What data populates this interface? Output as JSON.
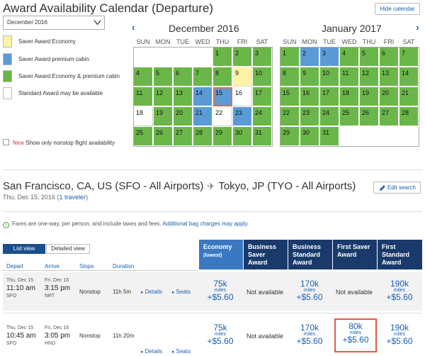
{
  "page": {
    "title": "Award Availability Calendar (Departure)",
    "hide_calendar": "Hide calendar",
    "month_select": "December 2016"
  },
  "legend": [
    {
      "label": "Saver Award Economy",
      "color": "#fbf3a6"
    },
    {
      "label": "Saver Award premium cabin",
      "color": "#5b9bd5"
    },
    {
      "label": "Saver Award Economy & premium cabin",
      "color": "#6bb649"
    },
    {
      "label": "Standard Award may be available",
      "color": "#ffffff"
    }
  ],
  "nonstop": {
    "new_label": "New",
    "label": "Show only nonstop flight availability"
  },
  "weekdays": [
    "SUN",
    "MON",
    "TUE",
    "WED",
    "THU",
    "FRI",
    "SAT"
  ],
  "calendars": [
    {
      "title": "December 2016",
      "weeks": [
        [
          null,
          null,
          null,
          null,
          {
            "d": "1",
            "s": "green"
          },
          {
            "d": "2",
            "s": "green"
          },
          {
            "d": "3",
            "s": "green"
          }
        ],
        [
          {
            "d": "4",
            "s": "green"
          },
          {
            "d": "5",
            "s": "green"
          },
          {
            "d": "6",
            "s": "green"
          },
          {
            "d": "7",
            "s": "green"
          },
          {
            "d": "8",
            "s": "green"
          },
          {
            "d": "9",
            "s": "yellow"
          },
          {
            "d": "10",
            "s": "green"
          }
        ],
        [
          {
            "d": "11",
            "s": "green"
          },
          {
            "d": "12",
            "s": "green"
          },
          {
            "d": "13",
            "s": "green"
          },
          {
            "d": "14",
            "s": "blue"
          },
          {
            "d": "15",
            "s": "blue",
            "selected": true
          },
          {
            "d": "16",
            "s": "white"
          },
          {
            "d": "17",
            "s": "green"
          }
        ],
        [
          {
            "d": "18",
            "s": "white"
          },
          {
            "d": "19",
            "s": "green"
          },
          {
            "d": "20",
            "s": "green"
          },
          {
            "d": "21",
            "s": "blue"
          },
          {
            "d": "22",
            "s": "white"
          },
          {
            "d": "23",
            "s": "blue"
          },
          {
            "d": "24",
            "s": "green"
          }
        ],
        [
          {
            "d": "25",
            "s": "green"
          },
          {
            "d": "26",
            "s": "green"
          },
          {
            "d": "27",
            "s": "green"
          },
          {
            "d": "28",
            "s": "green"
          },
          {
            "d": "29",
            "s": "green"
          },
          {
            "d": "30",
            "s": "green"
          },
          {
            "d": "31",
            "s": "green"
          }
        ]
      ]
    },
    {
      "title": "January 2017",
      "weeks": [
        [
          {
            "d": "1",
            "s": "green"
          },
          {
            "d": "2",
            "s": "blue"
          },
          {
            "d": "3",
            "s": "blue"
          },
          {
            "d": "4",
            "s": "green"
          },
          {
            "d": "5",
            "s": "green"
          },
          {
            "d": "6",
            "s": "green"
          },
          {
            "d": "7",
            "s": "green"
          }
        ],
        [
          {
            "d": "8",
            "s": "green"
          },
          {
            "d": "9",
            "s": "green"
          },
          {
            "d": "10",
            "s": "green"
          },
          {
            "d": "11",
            "s": "green"
          },
          {
            "d": "12",
            "s": "green"
          },
          {
            "d": "13",
            "s": "green"
          },
          {
            "d": "14",
            "s": "green"
          }
        ],
        [
          {
            "d": "15",
            "s": "green"
          },
          {
            "d": "16",
            "s": "green"
          },
          {
            "d": "17",
            "s": "green"
          },
          {
            "d": "18",
            "s": "green"
          },
          {
            "d": "19",
            "s": "green"
          },
          {
            "d": "20",
            "s": "green"
          },
          {
            "d": "21",
            "s": "green"
          }
        ],
        [
          {
            "d": "22",
            "s": "green"
          },
          {
            "d": "23",
            "s": "green"
          },
          {
            "d": "24",
            "s": "green"
          },
          {
            "d": "25",
            "s": "green"
          },
          {
            "d": "26",
            "s": "green"
          },
          {
            "d": "27",
            "s": "green"
          },
          {
            "d": "28",
            "s": "green"
          }
        ],
        [
          {
            "d": "29",
            "s": "green"
          },
          {
            "d": "30",
            "s": "green"
          },
          {
            "d": "31",
            "s": "green"
          },
          null,
          null,
          null,
          null
        ]
      ]
    }
  ],
  "route": {
    "origin": "San Francisco, CA, US (SFO - All Airports)",
    "destination": "Tokyo, JP (TYO - All Airports)",
    "date": "Thu, Dec 15, 2016 (",
    "travelers": "1 traveler",
    "close": ")",
    "edit_search": "Edit search"
  },
  "fares_note": {
    "text": "Fares are one-way, per person, and include taxes and fees.",
    "link": "Additional bag charges may apply."
  },
  "views": {
    "list": "List view",
    "detail": "Detailed view"
  },
  "columns": {
    "depart": "Depart",
    "arrive": "Arrive",
    "stops": "Stops",
    "duration": "Duration",
    "fares": [
      {
        "l1": "Economy",
        "l2": "(lowest)"
      },
      {
        "l1": "Business",
        "l2": "Saver",
        "l3": "Award"
      },
      {
        "l1": "Business",
        "l2": "Standard",
        "l3": "Award"
      },
      {
        "l1": "First Saver",
        "l2": "Award"
      },
      {
        "l1": "First",
        "l2": "Standard",
        "l3": "Award"
      }
    ]
  },
  "flights": [
    {
      "dep_date": "Thu, Dec 15",
      "dep_time": "11:10 am",
      "dep_apt": "SFO",
      "arr_date": "Fri, Dec 16",
      "arr_time": "3:15 pm",
      "arr_apt": "NRT",
      "stops": "Nonstop",
      "duration": "11h 5m",
      "details": "Details",
      "seats": "Seats",
      "fares": [
        {
          "miles": "75k",
          "unit": "miles",
          "tax": "+$5.60"
        },
        {
          "na": "Not available"
        },
        {
          "miles": "170k",
          "unit": "miles",
          "tax": "+$5.60"
        },
        {
          "na": "Not available"
        },
        {
          "miles": "190k",
          "unit": "miles",
          "tax": "+$5.60"
        }
      ]
    },
    {
      "dep_date": "Thu, Dec 15",
      "dep_time": "10:45 am",
      "dep_apt": "SFO",
      "arr_date": "Fri, Dec 16",
      "arr_time": "3:05 pm",
      "arr_apt": "HND",
      "stops": "Nonstop",
      "duration": "11h 20m",
      "details": "Details",
      "seats": "Seats",
      "fares": [
        {
          "miles": "75k",
          "unit": "miles",
          "tax": "+$5.60"
        },
        {
          "na": "Not available"
        },
        {
          "miles": "170k",
          "unit": "miles",
          "tax": "+$5.60"
        },
        {
          "miles": "80k",
          "unit": "miles",
          "tax": "+$5.60",
          "highlight": true
        },
        {
          "miles": "190k",
          "unit": "miles",
          "tax": "+$5.60"
        }
      ]
    }
  ]
}
